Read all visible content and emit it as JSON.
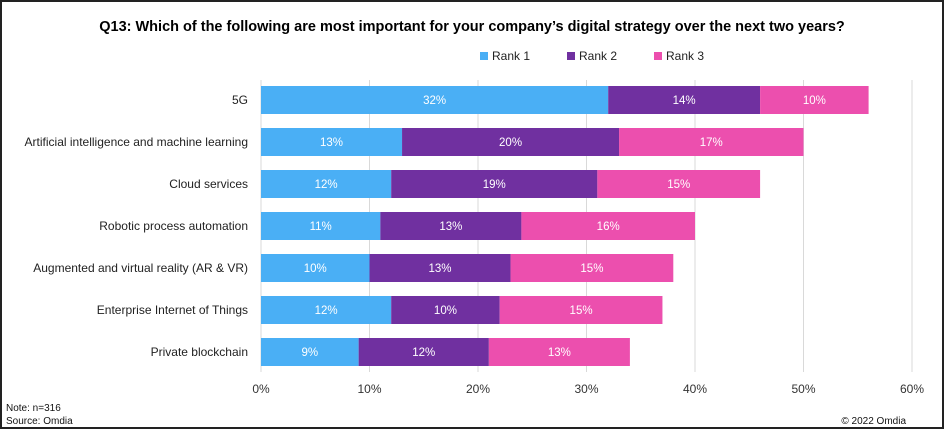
{
  "chart_data": {
    "type": "bar",
    "orientation": "horizontal",
    "stacked": true,
    "title": "Q13: Which of the following are most important for your company’s digital strategy over the next two years?",
    "categories": [
      "5G",
      "Artificial intelligence and machine learning",
      "Cloud services",
      "Robotic process automation",
      "Augmented and virtual reality (AR & VR)",
      "Enterprise Internet of Things",
      "Private blockchain"
    ],
    "series": [
      {
        "name": "Rank 1",
        "color": "#4aaff5",
        "values": [
          32,
          13,
          12,
          11,
          10,
          12,
          9
        ]
      },
      {
        "name": "Rank 2",
        "color": "#7030a0",
        "values": [
          14,
          20,
          19,
          13,
          13,
          10,
          12
        ]
      },
      {
        "name": "Rank 3",
        "color": "#ec4fae",
        "values": [
          10,
          17,
          15,
          16,
          15,
          15,
          13
        ]
      }
    ],
    "xlim": [
      0,
      60
    ],
    "xticks": [
      "0%",
      "10%",
      "20%",
      "30%",
      "40%",
      "50%",
      "60%"
    ],
    "grid": true,
    "legend": "top"
  },
  "footer": {
    "note": "Note: n=316",
    "source": "Source: Omdia",
    "copyright": "© 2022 Omdia"
  }
}
